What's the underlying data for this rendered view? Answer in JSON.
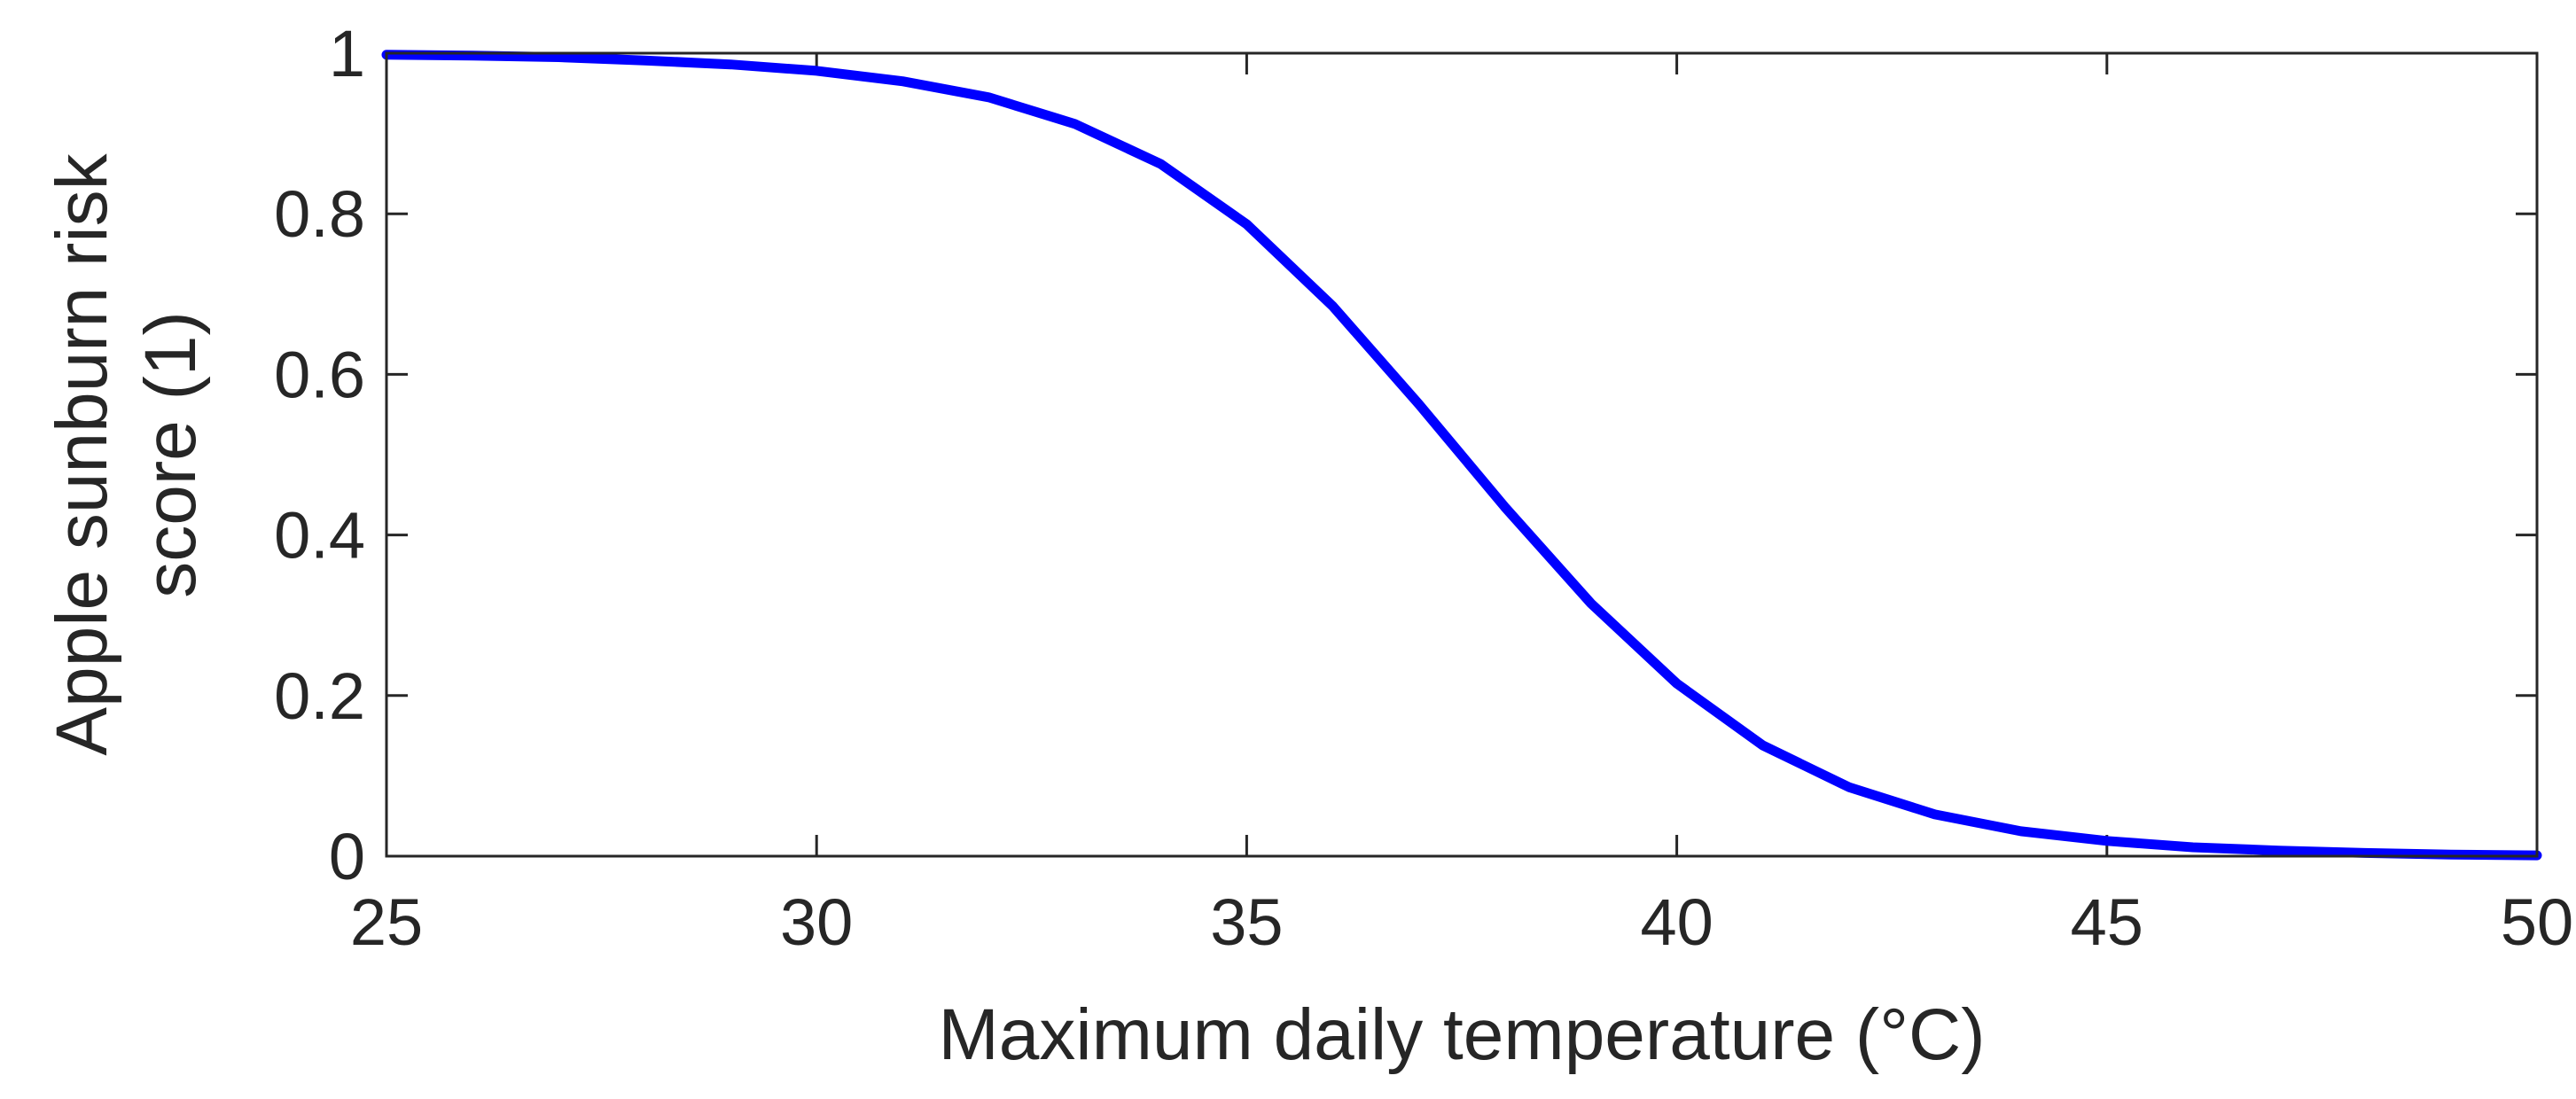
{
  "chart_data": {
    "type": "line",
    "title": "",
    "xlabel": "Maximum daily temperature (°C)",
    "ylabel_lines": [
      "Apple sunburn risk",
      "score (1)"
    ],
    "xlim": [
      25,
      50
    ],
    "ylim": [
      0,
      1
    ],
    "xticks": [
      25,
      30,
      35,
      40,
      45,
      50
    ],
    "yticks": [
      0,
      0.2,
      0.4,
      0.6,
      0.8,
      1
    ],
    "xtick_labels": [
      "25",
      "30",
      "35",
      "40",
      "45",
      "50"
    ],
    "ytick_labels": [
      "0",
      "0.2",
      "0.4",
      "0.6",
      "0.8",
      "1"
    ],
    "grid": false,
    "legend": "none",
    "series": [
      {
        "color": "#0000ff",
        "x": [
          25,
          26,
          27,
          28,
          29,
          30,
          31,
          32,
          33,
          34,
          35,
          36,
          37,
          38,
          39,
          40,
          41,
          42,
          43,
          44,
          45,
          46,
          47,
          48,
          49,
          50
        ],
        "y": [
          0.998,
          0.997,
          0.995,
          0.991,
          0.986,
          0.978,
          0.965,
          0.945,
          0.912,
          0.862,
          0.787,
          0.685,
          0.563,
          0.435,
          0.315,
          0.215,
          0.138,
          0.086,
          0.052,
          0.031,
          0.019,
          0.011,
          0.007,
          0.004,
          0.002,
          0.001
        ]
      }
    ]
  }
}
